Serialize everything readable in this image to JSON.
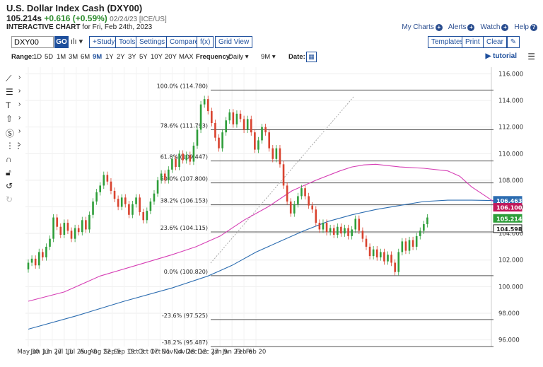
{
  "header": {
    "title": "U.S. Dollar Index Cash (DXY00)",
    "last": "105.214s",
    "change": "+0.616 (+0.59%)",
    "meta": "02/24/23 [ICE/US]",
    "chart_type": "INTERACTIVE CHART",
    "chart_for": "for Fri, Feb 24th, 2023"
  },
  "toplinks": {
    "my_charts": "My Charts",
    "alerts": "Alerts",
    "watch": "Watch",
    "help": "Help"
  },
  "toolbar": {
    "symbol": "DXY00",
    "go": "GO",
    "study": "+Study",
    "tools": "Tools",
    "settings": "Settings",
    "compare": "Compare",
    "fx": "f(x)",
    "grid": "Grid View",
    "templates": "Templates",
    "print": "Print",
    "clear": "Clear"
  },
  "rangebar": {
    "range_label": "Range:",
    "ranges": [
      "1D",
      "5D",
      "1M",
      "3M",
      "6M",
      "9M",
      "1Y",
      "2Y",
      "3Y",
      "5Y",
      "10Y",
      "20Y",
      "MAX"
    ],
    "selected": "9M",
    "frequency_label": "Frequency:",
    "frequency": "Daily",
    "period": "9M",
    "date_label": "Date:",
    "tutorial": "tutorial"
  },
  "icons": {
    "line_tool": "line-tool-icon",
    "fib_tool": "fib-tool-icon",
    "text_tool": "text-tool-icon",
    "arrow_tool": "arrow-tool-icon",
    "symbol_tool": "symbol-tool-icon",
    "measure_tool": "measure-tool-icon",
    "magnet": "magnet-icon",
    "lock": "lock-icon",
    "undo": "undo-icon",
    "redo": "redo-icon"
  },
  "chart_data": {
    "type": "candlestick",
    "ylim": [
      95.5,
      116.5
    ],
    "y_ticks": [
      "116.000",
      "114.000",
      "112.000",
      "110.000",
      "108.000",
      "106.000",
      "104.000",
      "102.000",
      "100.000",
      "98.000",
      "96.000"
    ],
    "x_ticks": [
      "May 30",
      "Jun 13",
      "Jun 27",
      "Jul 11",
      "Jul 25",
      "Aug 8",
      "Aug 22",
      "Sep 5",
      "Sep 19",
      "Oct 3",
      "Oct 17",
      "Oct 31",
      "Nov 14",
      "Nov 28",
      "Dec 12",
      "Dec 27",
      "Jan 9",
      "Jan 23",
      "Feb 6",
      "Feb 20"
    ],
    "fib_levels": [
      {
        "label": "100.0% (114.780)",
        "value": 114.78
      },
      {
        "label": "78.6% (111.793)",
        "value": 111.793
      },
      {
        "label": "61.8% (109.447)",
        "value": 109.447
      },
      {
        "label": "50.0% (107.800)",
        "value": 107.8
      },
      {
        "label": "38.2% (106.153)",
        "value": 106.153
      },
      {
        "label": "23.6% (104.115)",
        "value": 104.115
      },
      {
        "label": "0.0% (100.820)",
        "value": 100.82
      },
      {
        "label": "-23.6% (97.525)",
        "value": 97.525
      },
      {
        "label": "-38.2% (95.487)",
        "value": 95.487
      }
    ],
    "price_labels": [
      {
        "text": "106.463",
        "value": 106.463,
        "color": "#2b6cb0"
      },
      {
        "text": "106.100",
        "value": 106.1,
        "color": "#c2185b"
      },
      {
        "text": "105.214",
        "value": 105.214,
        "color": "#2e9e3a"
      },
      {
        "text": "104.598",
        "value": 104.598,
        "color": "#222222"
      }
    ],
    "ma_short": [
      [
        0,
        98.9
      ],
      [
        3,
        99.6
      ],
      [
        6,
        100.8
      ],
      [
        9,
        101.6
      ],
      [
        12,
        102.4
      ],
      [
        14,
        103.0
      ],
      [
        16,
        103.8
      ],
      [
        18,
        105.0
      ],
      [
        20,
        106.0
      ],
      [
        22,
        107.2
      ],
      [
        24,
        108.0
      ],
      [
        26,
        108.7
      ],
      [
        27,
        109.0
      ],
      [
        28,
        109.15
      ],
      [
        29,
        109.2
      ],
      [
        31,
        109.0
      ],
      [
        33,
        108.9
      ],
      [
        35,
        108.7
      ],
      [
        36,
        108.3
      ],
      [
        37,
        107.5
      ],
      [
        38,
        106.9
      ],
      [
        39,
        106.3
      ],
      [
        39.5,
        106.1
      ]
    ],
    "ma_short_color": "#d63fb5",
    "ma_long": [
      [
        0,
        96.8
      ],
      [
        4,
        97.8
      ],
      [
        8,
        98.9
      ],
      [
        12,
        99.9
      ],
      [
        15,
        100.8
      ],
      [
        17,
        101.6
      ],
      [
        19,
        102.6
      ],
      [
        21,
        103.4
      ],
      [
        23,
        104.2
      ],
      [
        25,
        104.9
      ],
      [
        27,
        105.4
      ],
      [
        29,
        105.8
      ],
      [
        31,
        106.1
      ],
      [
        33,
        106.4
      ],
      [
        35,
        106.5
      ],
      [
        37,
        106.5
      ],
      [
        39.5,
        106.46
      ]
    ],
    "ma_long_color": "#2b6cb0",
    "candles": [
      [
        0,
        101.3,
        101.8
      ],
      [
        0.3,
        101.8,
        102.1
      ],
      [
        0.6,
        102.1,
        101.6
      ],
      [
        0.9,
        101.6,
        102.6
      ],
      [
        1.2,
        102.6,
        102.2
      ],
      [
        1.5,
        102.2,
        103.0
      ],
      [
        1.8,
        103.0,
        103.6
      ],
      [
        2.1,
        103.6,
        105.2
      ],
      [
        2.4,
        105.2,
        104.5
      ],
      [
        2.7,
        104.5,
        103.9
      ],
      [
        3.0,
        103.9,
        104.8
      ],
      [
        3.3,
        104.8,
        104.2
      ],
      [
        3.6,
        104.2,
        103.6
      ],
      [
        3.9,
        103.6,
        104.4
      ],
      [
        4.2,
        104.4,
        104.1
      ],
      [
        4.5,
        104.1,
        105.0
      ],
      [
        4.8,
        105.0,
        104.3
      ],
      [
        5.1,
        104.3,
        105.4
      ],
      [
        5.4,
        105.4,
        106.4
      ],
      [
        5.7,
        106.4,
        107.1
      ],
      [
        6.0,
        107.1,
        107.6
      ],
      [
        6.3,
        107.6,
        108.4
      ],
      [
        6.6,
        108.4,
        107.9
      ],
      [
        6.9,
        107.9,
        107.2
      ],
      [
        7.2,
        107.2,
        106.6
      ],
      [
        7.5,
        106.6,
        106.0
      ],
      [
        7.8,
        106.0,
        106.7
      ],
      [
        8.1,
        106.7,
        106.2
      ],
      [
        8.4,
        106.2,
        105.4
      ],
      [
        8.7,
        105.4,
        106.2
      ],
      [
        9.0,
        106.2,
        106.7
      ],
      [
        9.3,
        106.7,
        105.6
      ],
      [
        9.6,
        105.6,
        105.0
      ],
      [
        9.9,
        105.0,
        105.7
      ],
      [
        10.2,
        105.7,
        106.4
      ],
      [
        10.5,
        106.4,
        107.0
      ],
      [
        10.8,
        107.0,
        108.0
      ],
      [
        11.1,
        108.0,
        108.5
      ],
      [
        11.4,
        108.5,
        108.0
      ],
      [
        11.7,
        108.0,
        108.8
      ],
      [
        12.0,
        108.8,
        109.6
      ],
      [
        12.3,
        109.6,
        109.0
      ],
      [
        12.6,
        109.0,
        110.0
      ],
      [
        12.9,
        110.0,
        109.5
      ],
      [
        13.2,
        109.5,
        109.9
      ],
      [
        13.5,
        109.9,
        109.4
      ],
      [
        13.8,
        109.4,
        110.6
      ],
      [
        14.1,
        110.6,
        111.8
      ],
      [
        14.4,
        111.8,
        113.7
      ],
      [
        14.7,
        113.7,
        114.1
      ],
      [
        15.0,
        114.1,
        113.2
      ],
      [
        15.3,
        113.2,
        112.3
      ],
      [
        15.6,
        112.3,
        111.2
      ],
      [
        15.9,
        111.2,
        110.4
      ],
      [
        16.2,
        110.4,
        111.6
      ],
      [
        16.5,
        111.6,
        112.5
      ],
      [
        16.8,
        112.5,
        113.1
      ],
      [
        17.1,
        113.1,
        112.2
      ],
      [
        17.4,
        112.2,
        113.0
      ],
      [
        17.7,
        113.0,
        112.6
      ],
      [
        18.0,
        112.6,
        111.8
      ],
      [
        18.3,
        111.8,
        112.6
      ],
      [
        18.6,
        112.6,
        111.6
      ],
      [
        18.9,
        111.6,
        110.3
      ],
      [
        19.2,
        110.3,
        111.0
      ],
      [
        19.5,
        111.0,
        112.0
      ],
      [
        19.8,
        112.0,
        111.6
      ],
      [
        20.1,
        111.6,
        110.4
      ],
      [
        20.4,
        110.4,
        109.6
      ],
      [
        20.7,
        109.6,
        110.4
      ],
      [
        21.0,
        110.4,
        109.2
      ],
      [
        21.3,
        109.2,
        107.6
      ],
      [
        21.6,
        107.6,
        106.4
      ],
      [
        21.9,
        106.4,
        105.5
      ],
      [
        22.2,
        105.5,
        106.2
      ],
      [
        22.5,
        106.2,
        106.8
      ],
      [
        22.8,
        106.8,
        107.4
      ],
      [
        23.1,
        107.4,
        106.8
      ],
      [
        23.4,
        106.8,
        106.1
      ],
      [
        23.7,
        106.1,
        105.8
      ],
      [
        24.0,
        105.8,
        104.8
      ],
      [
        24.3,
        104.8,
        104.3
      ],
      [
        24.6,
        104.3,
        104.8
      ],
      [
        24.9,
        104.8,
        104.1
      ],
      [
        25.2,
        104.1,
        104.4
      ],
      [
        25.5,
        104.4,
        103.9
      ],
      [
        25.8,
        103.9,
        104.5
      ],
      [
        26.1,
        104.5,
        104.0
      ],
      [
        26.4,
        104.0,
        104.4
      ],
      [
        26.7,
        104.4,
        103.8
      ],
      [
        27.0,
        103.8,
        104.3
      ],
      [
        27.3,
        104.3,
        105.1
      ],
      [
        27.6,
        105.1,
        104.2
      ],
      [
        27.9,
        104.2,
        103.6
      ],
      [
        28.2,
        103.6,
        103.0
      ],
      [
        28.5,
        103.0,
        102.3
      ],
      [
        28.8,
        102.3,
        102.8
      ],
      [
        29.1,
        102.8,
        102.2
      ],
      [
        29.4,
        102.2,
        102.6
      ],
      [
        29.7,
        102.6,
        101.9
      ],
      [
        30.0,
        101.9,
        102.4
      ],
      [
        30.3,
        102.4,
        101.8
      ],
      [
        30.6,
        101.8,
        101.1
      ],
      [
        30.9,
        101.1,
        102.6
      ],
      [
        31.2,
        102.6,
        103.4
      ],
      [
        31.5,
        103.4,
        102.7
      ],
      [
        31.8,
        102.7,
        103.5
      ],
      [
        32.1,
        103.5,
        103.0
      ],
      [
        32.4,
        103.0,
        103.8
      ],
      [
        32.7,
        103.8,
        104.2
      ],
      [
        33.0,
        104.2,
        104.7
      ],
      [
        33.3,
        104.7,
        105.2
      ]
    ]
  }
}
